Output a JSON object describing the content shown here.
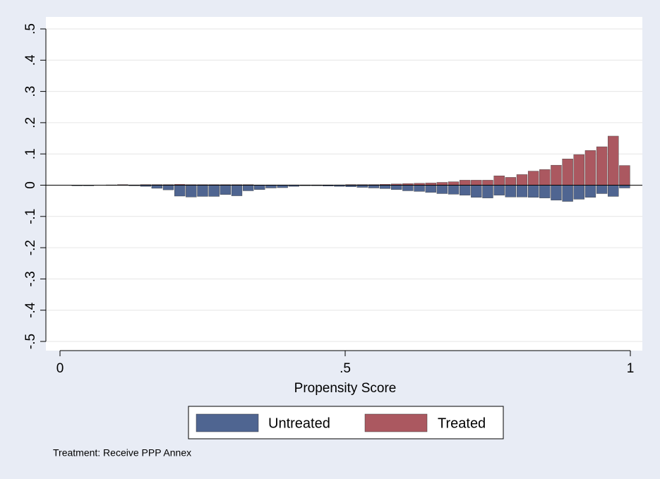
{
  "chart_data": {
    "type": "histogram",
    "x_label": "Propensity Score",
    "note": "Treatment: Receive PPP Annex",
    "bins": [
      0,
      0.02,
      0.04,
      0.06,
      0.08,
      0.1,
      0.12,
      0.14,
      0.16,
      0.18,
      0.2,
      0.22,
      0.24,
      0.26,
      0.28,
      0.3,
      0.32,
      0.34,
      0.36,
      0.38,
      0.4,
      0.42,
      0.44,
      0.46,
      0.48,
      0.5,
      0.52,
      0.54,
      0.56,
      0.58,
      0.6,
      0.62,
      0.64,
      0.66,
      0.68,
      0.7,
      0.72,
      0.74,
      0.76,
      0.78,
      0.8,
      0.82,
      0.84,
      0.86,
      0.88,
      0.9,
      0.92,
      0.94,
      0.96,
      0.98,
      1
    ],
    "series": [
      {
        "name": "Untreated",
        "color": "#4f6591",
        "values": [
          0,
          -0.002,
          -0.002,
          0,
          -0.001,
          -0.001,
          -0.002,
          -0.004,
          -0.01,
          -0.015,
          -0.035,
          -0.038,
          -0.036,
          -0.036,
          -0.03,
          -0.034,
          -0.018,
          -0.014,
          -0.009,
          -0.008,
          -0.004,
          -0.002,
          -0.002,
          -0.003,
          -0.004,
          -0.005,
          -0.007,
          -0.009,
          -0.011,
          -0.014,
          -0.018,
          -0.02,
          -0.023,
          -0.027,
          -0.029,
          -0.032,
          -0.039,
          -0.041,
          -0.032,
          -0.038,
          -0.038,
          -0.039,
          -0.041,
          -0.048,
          -0.052,
          -0.045,
          -0.039,
          -0.027,
          -0.036,
          -0.009
        ]
      },
      {
        "name": "Treated",
        "color": "#ab5860",
        "values": [
          0,
          0,
          0,
          0,
          0.001,
          0.002,
          0.001,
          0.002,
          0.002,
          0.002,
          0.003,
          0.002,
          0.002,
          0.002,
          0.002,
          0.002,
          0.002,
          0.001,
          0.001,
          0.001,
          0.001,
          0.001,
          0.001,
          0.001,
          0.001,
          0.002,
          0.002,
          0.002,
          0.003,
          0.004,
          0.005,
          0.006,
          0.007,
          0.009,
          0.011,
          0.016,
          0.016,
          0.016,
          0.03,
          0.025,
          0.034,
          0.045,
          0.05,
          0.064,
          0.084,
          0.098,
          0.111,
          0.123,
          0.157,
          0.063
        ]
      }
    ],
    "xlim": [
      0,
      1
    ],
    "xticks": [
      0,
      {
        "value": 0.5,
        "label": ".5"
      },
      1
    ],
    "ylim": [
      -0.5,
      0.5
    ],
    "yticks": [
      {
        "value": -0.5,
        "label": "-.5"
      },
      {
        "value": -0.4,
        "label": "-.4"
      },
      {
        "value": -0.3,
        "label": "-.3"
      },
      {
        "value": -0.2,
        "label": "-.2"
      },
      {
        "value": -0.1,
        "label": "-.1"
      },
      0,
      {
        "value": 0.1,
        "label": ".1"
      },
      {
        "value": 0.2,
        "label": ".2"
      },
      {
        "value": 0.3,
        "label": ".3"
      },
      {
        "value": 0.4,
        "label": ".4"
      },
      {
        "value": 0.5,
        "label": ".5"
      }
    ],
    "grid": true
  }
}
